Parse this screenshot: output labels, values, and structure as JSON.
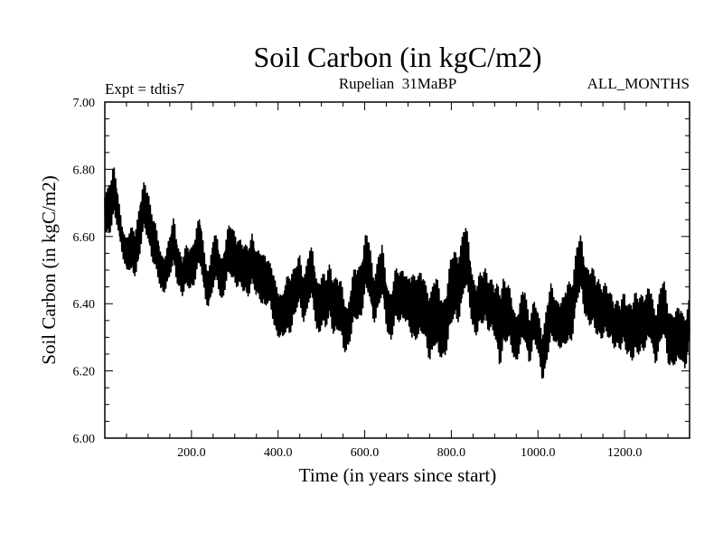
{
  "chart_data": {
    "type": "line",
    "title": "Soil Carbon (in kgC/m2)",
    "subtitle": "Rupelian  31MaBP",
    "experiment_label": "Expt = tdtis7",
    "period_label": "ALL_MONTHS",
    "xlabel": "Time (in years since start)",
    "ylabel": "Soil Carbon (in kgC/m2)",
    "xlim": [
      0,
      1350
    ],
    "ylim": [
      6.0,
      7.0
    ],
    "x_ticks": [
      200,
      400,
      600,
      800,
      1000,
      1200
    ],
    "x_tick_labels": [
      "200.0",
      "400.0",
      "600.0",
      "800.0",
      "1000.0",
      "1200.0"
    ],
    "y_ticks": [
      6.0,
      6.2,
      6.4,
      6.6,
      6.8,
      7.0
    ],
    "y_tick_labels": [
      "6.00",
      "6.20",
      "6.40",
      "6.60",
      "6.80",
      "7.00"
    ],
    "grid": false,
    "series": [
      {
        "color": "#000000",
        "x": [
          0,
          10,
          20,
          30,
          40,
          50,
          60,
          70,
          80,
          90,
          100,
          110,
          120,
          130,
          140,
          150,
          160,
          170,
          180,
          190,
          200,
          210,
          220,
          230,
          240,
          250,
          260,
          270,
          280,
          290,
          300,
          310,
          320,
          330,
          340,
          350,
          360,
          370,
          380,
          390,
          400,
          410,
          420,
          430,
          440,
          450,
          460,
          470,
          480,
          490,
          500,
          510,
          520,
          530,
          540,
          550,
          560,
          570,
          580,
          590,
          600,
          610,
          620,
          630,
          640,
          650,
          660,
          670,
          680,
          690,
          700,
          710,
          720,
          730,
          740,
          750,
          760,
          770,
          780,
          790,
          800,
          810,
          820,
          830,
          840,
          850,
          860,
          870,
          880,
          890,
          900,
          910,
          920,
          930,
          940,
          950,
          960,
          970,
          980,
          990,
          1000,
          1010,
          1020,
          1030,
          1040,
          1050,
          1060,
          1070,
          1080,
          1090,
          1100,
          1110,
          1120,
          1130,
          1140,
          1150,
          1160,
          1170,
          1180,
          1190,
          1200,
          1210,
          1220,
          1230,
          1240,
          1250,
          1260,
          1270,
          1280,
          1290,
          1300,
          1310,
          1320,
          1330,
          1340,
          1350
        ],
        "y_max": [
          6.75,
          6.8,
          6.82,
          6.74,
          6.66,
          6.6,
          6.63,
          6.66,
          6.72,
          6.76,
          6.77,
          6.7,
          6.62,
          6.56,
          6.58,
          6.61,
          6.67,
          6.6,
          6.55,
          6.58,
          6.6,
          6.64,
          6.66,
          6.58,
          6.52,
          6.6,
          6.62,
          6.56,
          6.6,
          6.66,
          6.66,
          6.6,
          6.58,
          6.62,
          6.63,
          6.55,
          6.6,
          6.58,
          6.52,
          6.52,
          6.48,
          6.42,
          6.5,
          6.55,
          6.52,
          6.55,
          6.52,
          6.58,
          6.56,
          6.5,
          6.52,
          6.48,
          6.55,
          6.52,
          6.48,
          6.46,
          6.42,
          6.48,
          6.52,
          6.56,
          6.62,
          6.6,
          6.52,
          6.56,
          6.58,
          6.5,
          6.46,
          6.5,
          6.52,
          6.55,
          6.48,
          6.5,
          6.55,
          6.52,
          6.46,
          6.48,
          6.52,
          6.46,
          6.44,
          6.5,
          6.55,
          6.58,
          6.62,
          6.65,
          6.6,
          6.52,
          6.48,
          6.5,
          6.55,
          6.5,
          6.45,
          6.5,
          6.52,
          6.46,
          6.44,
          6.4,
          6.42,
          6.46,
          6.4,
          6.42,
          6.38,
          6.35,
          6.42,
          6.46,
          6.45,
          6.44,
          6.42,
          6.5,
          6.52,
          6.58,
          6.62,
          6.56,
          6.52,
          6.5,
          6.52,
          6.48,
          6.45,
          6.46,
          6.44,
          6.4,
          6.46,
          6.44,
          6.42,
          6.45,
          6.48,
          6.44,
          6.46,
          6.42,
          6.45,
          6.48,
          6.44,
          6.4,
          6.38,
          6.42,
          6.4,
          6.42
        ],
        "y_min": [
          6.6,
          6.6,
          6.62,
          6.6,
          6.55,
          6.48,
          6.46,
          6.48,
          6.52,
          6.58,
          6.58,
          6.52,
          6.45,
          6.42,
          6.44,
          6.45,
          6.48,
          6.45,
          6.4,
          6.42,
          6.44,
          6.46,
          6.48,
          6.42,
          6.38,
          6.4,
          6.45,
          6.4,
          6.42,
          6.46,
          6.46,
          6.42,
          6.4,
          6.42,
          6.44,
          6.38,
          6.4,
          6.38,
          6.36,
          6.32,
          6.3,
          6.26,
          6.28,
          6.32,
          6.34,
          6.36,
          6.34,
          6.38,
          6.36,
          6.3,
          6.32,
          6.28,
          6.34,
          6.3,
          6.28,
          6.24,
          6.26,
          6.28,
          6.32,
          6.35,
          6.4,
          6.38,
          6.34,
          6.36,
          6.38,
          6.32,
          6.28,
          6.3,
          6.32,
          6.36,
          6.3,
          6.24,
          6.3,
          6.28,
          6.24,
          6.22,
          6.26,
          6.18,
          6.22,
          6.26,
          6.28,
          6.32,
          6.36,
          6.4,
          6.38,
          6.32,
          6.28,
          6.3,
          6.34,
          6.3,
          6.26,
          6.2,
          6.26,
          6.24,
          6.24,
          6.22,
          6.24,
          6.26,
          6.22,
          6.26,
          6.22,
          6.17,
          6.2,
          6.24,
          6.28,
          6.26,
          6.22,
          6.26,
          6.3,
          6.36,
          6.4,
          6.36,
          6.3,
          6.28,
          6.3,
          6.28,
          6.26,
          6.28,
          6.26,
          6.22,
          6.26,
          6.24,
          6.18,
          6.22,
          6.26,
          6.24,
          6.26,
          6.22,
          6.24,
          6.26,
          6.22,
          6.2,
          6.17,
          6.22,
          6.2,
          6.24
        ]
      }
    ]
  }
}
